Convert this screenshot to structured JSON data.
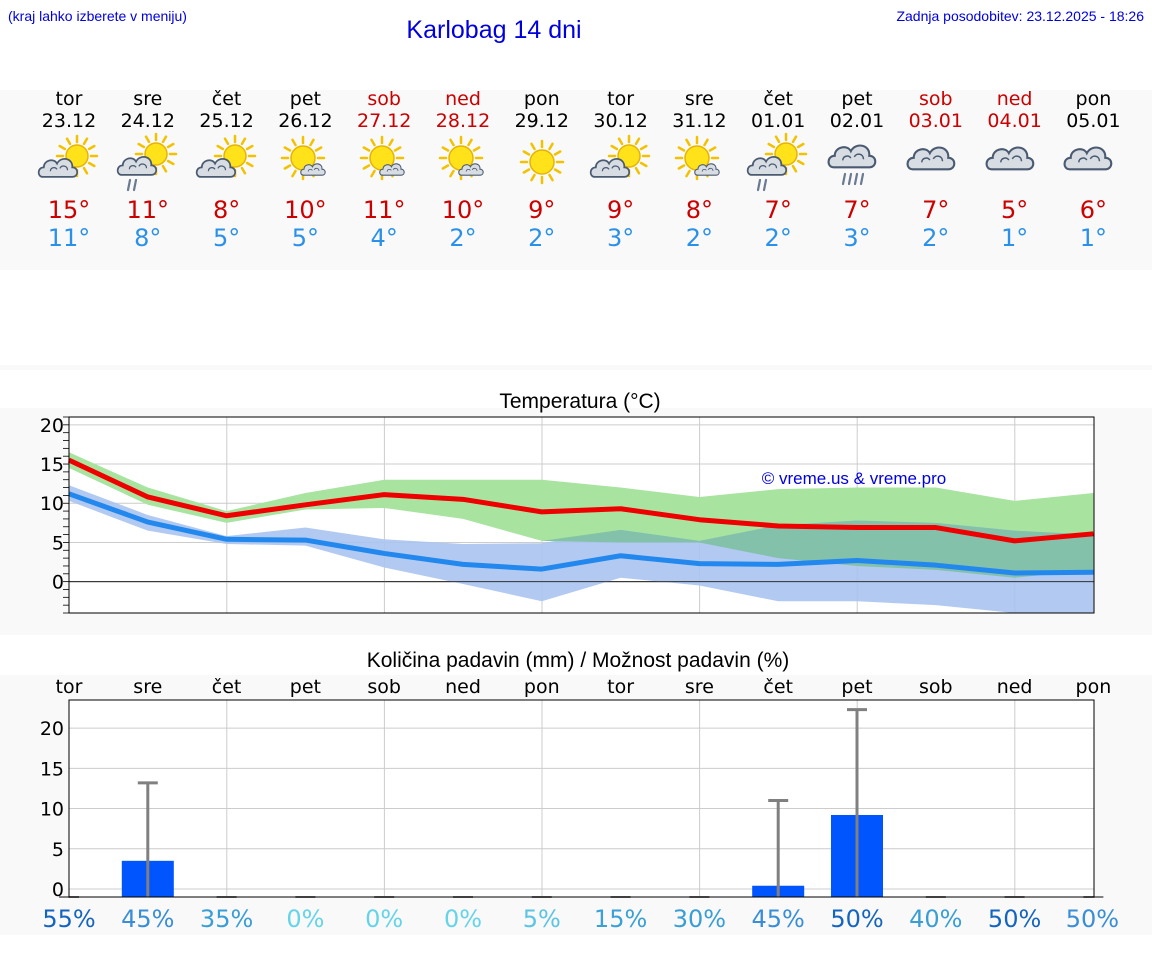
{
  "header": {
    "left_note": "(kraj lahko izberete v meniju)",
    "title": "Karlobag 14 dni",
    "updated": "Zadnja posodobitev: 23.12.2025 - 18:26"
  },
  "days": [
    {
      "name": "tor",
      "date": "23.12",
      "weekend": false,
      "icon": "sun-cloud-icon",
      "tmax": "15°",
      "tmin": "11°"
    },
    {
      "name": "sre",
      "date": "24.12",
      "weekend": false,
      "icon": "sun-cloud-rain-icon",
      "tmax": "11°",
      "tmin": "8°"
    },
    {
      "name": "čet",
      "date": "25.12",
      "weekend": false,
      "icon": "sun-cloud-icon",
      "tmax": "8°",
      "tmin": "5°"
    },
    {
      "name": "pet",
      "date": "26.12",
      "weekend": false,
      "icon": "sun-small-cloud-icon",
      "tmax": "10°",
      "tmin": "5°"
    },
    {
      "name": "sob",
      "date": "27.12",
      "weekend": true,
      "icon": "sun-small-cloud-icon",
      "tmax": "11°",
      "tmin": "4°"
    },
    {
      "name": "ned",
      "date": "28.12",
      "weekend": true,
      "icon": "sun-small-cloud-icon",
      "tmax": "10°",
      "tmin": "2°"
    },
    {
      "name": "pon",
      "date": "29.12",
      "weekend": false,
      "icon": "sun-icon",
      "tmax": "9°",
      "tmin": "2°"
    },
    {
      "name": "tor",
      "date": "30.12",
      "weekend": false,
      "icon": "sun-cloud-icon",
      "tmax": "9°",
      "tmin": "3°"
    },
    {
      "name": "sre",
      "date": "31.12",
      "weekend": false,
      "icon": "sun-small-cloud-icon",
      "tmax": "8°",
      "tmin": "2°"
    },
    {
      "name": "čet",
      "date": "01.01",
      "weekend": false,
      "icon": "sun-cloud-rain-icon",
      "tmax": "7°",
      "tmin": "2°"
    },
    {
      "name": "pet",
      "date": "02.01",
      "weekend": false,
      "icon": "cloud-rain-icon",
      "tmax": "7°",
      "tmin": "3°"
    },
    {
      "name": "sob",
      "date": "03.01",
      "weekend": true,
      "icon": "cloud-icon",
      "tmax": "7°",
      "tmin": "2°"
    },
    {
      "name": "ned",
      "date": "04.01",
      "weekend": true,
      "icon": "cloud-icon",
      "tmax": "5°",
      "tmin": "1°"
    },
    {
      "name": "pon",
      "date": "05.01",
      "weekend": false,
      "icon": "cloud-icon",
      "tmax": "6°",
      "tmin": "1°"
    }
  ],
  "colors": {
    "max_line": "#ee0000",
    "min_line": "#2288ee",
    "max_band": "#a8e4a0",
    "min_band": "#aac4f0",
    "overlap": "#7cc0a0",
    "rain_bar": "#0055ff",
    "error": "#808080",
    "title_blue": "#0000dd"
  },
  "chart_data": [
    {
      "type": "line",
      "title": "Temperatura (°C)",
      "watermark": "© vreme.us & vreme.pro",
      "ylim": [
        -4,
        21
      ],
      "yticks": [
        0,
        5,
        10,
        15,
        20
      ],
      "series": [
        {
          "name": "max",
          "values": [
            15.5,
            10.8,
            8.4,
            9.8,
            11.1,
            10.5,
            8.9,
            9.3,
            7.9,
            7.1,
            6.9,
            6.9,
            5.2,
            6.1
          ],
          "band_low": [
            14.5,
            9.8,
            7.5,
            9.2,
            9.4,
            8.0,
            5.2,
            5.0,
            5.0,
            3.0,
            2.0,
            1.5,
            0.5,
            1.5
          ],
          "band_high": [
            16.5,
            12.0,
            9.0,
            11.3,
            13.0,
            13.0,
            13.0,
            12.0,
            10.8,
            11.8,
            12.0,
            12.0,
            10.3,
            11.3
          ]
        },
        {
          "name": "min",
          "values": [
            11.2,
            7.6,
            5.4,
            5.3,
            3.6,
            2.2,
            1.6,
            3.3,
            2.3,
            2.2,
            2.7,
            2.1,
            1.1,
            1.2
          ],
          "band_low": [
            10.3,
            6.5,
            4.8,
            4.6,
            1.8,
            -0.3,
            -2.5,
            0.5,
            -0.5,
            -2.5,
            -2.5,
            -3.0,
            -4.0,
            -4.0
          ],
          "band_high": [
            12.3,
            8.5,
            5.8,
            6.9,
            5.4,
            4.8,
            4.9,
            6.6,
            5.2,
            7.2,
            7.8,
            7.5,
            6.5,
            6.0
          ]
        }
      ]
    },
    {
      "type": "bar",
      "title": "Količina padavin (mm) / Možnost padavin (%)",
      "categories": [
        "tor",
        "sre",
        "čet",
        "pet",
        "sob",
        "ned",
        "pon",
        "tor",
        "sre",
        "čet",
        "pet",
        "sob",
        "ned",
        "pon"
      ],
      "ylim": [
        -1,
        23.5
      ],
      "yticks": [
        0,
        5,
        10,
        15,
        20
      ],
      "values": [
        0,
        3.5,
        0,
        0,
        0,
        0,
        0,
        0,
        0,
        0.4,
        9.2,
        0,
        0,
        0
      ],
      "error_high": [
        0,
        13.2,
        0,
        0,
        0,
        0,
        0,
        0,
        0,
        11.0,
        22.3,
        0,
        0,
        0
      ],
      "probability": [
        "55%",
        "45%",
        "35%",
        "0%",
        "0%",
        "0%",
        "5%",
        "15%",
        "30%",
        "45%",
        "50%",
        "40%",
        "50%",
        "50%"
      ],
      "probability_colors": [
        "#1565c0",
        "#3a8ed6",
        "#3a9ed6",
        "#66d4e8",
        "#66d4e8",
        "#66d4e8",
        "#5cc4e4",
        "#3aa0d8",
        "#3a9ed6",
        "#3a8ed6",
        "#1565c0",
        "#3a9ed6",
        "#1565c0",
        "#3a8ed6"
      ]
    }
  ]
}
